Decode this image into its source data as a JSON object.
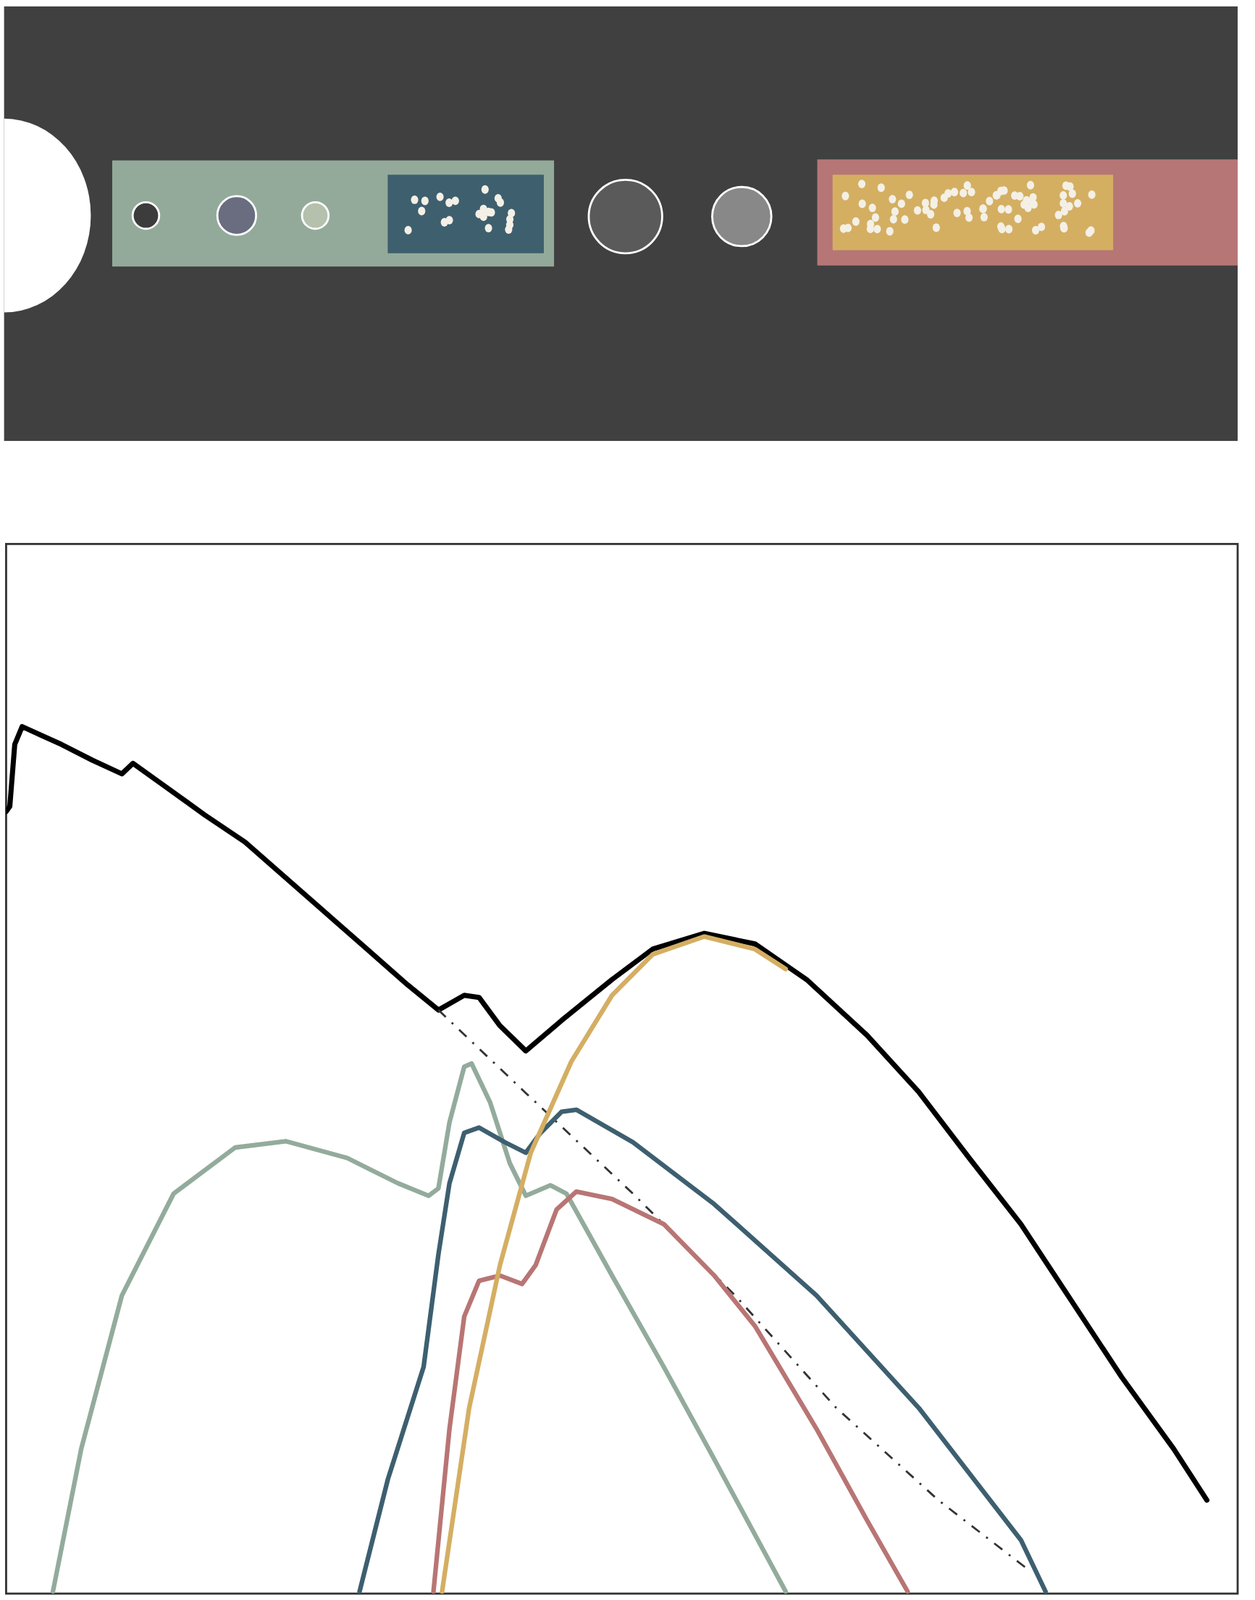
{
  "chart_data": {
    "type": "line",
    "xlim": [
      0,
      100
    ],
    "ylim": [
      0,
      100
    ],
    "tick_labels": false,
    "grid": false,
    "series": [
      {
        "color": "#000000",
        "line_style": "solid",
        "x": [
          0,
          0.3,
          0.7,
          1.3,
          2.8,
          4.5,
          7.0,
          9.4,
          10.3,
          12.8,
          16.1,
          19.4,
          22.7,
          26.0,
          29.3,
          32.6,
          35.1,
          37.2,
          38.4,
          40.1,
          42.2,
          45.1,
          49.2,
          52.5,
          56.7,
          60.8,
          65.0,
          69.9,
          74.1,
          78.2,
          82.4,
          86.5,
          90.6,
          94.8,
          97.5
        ],
        "values": [
          74.5,
          75.0,
          80.9,
          82.6,
          81.8,
          80.9,
          79.4,
          78.1,
          79.1,
          77.0,
          74.2,
          71.6,
          68.2,
          64.8,
          61.4,
          58.0,
          55.6,
          57.0,
          56.8,
          54.1,
          51.7,
          54.6,
          58.5,
          61.4,
          62.9,
          61.9,
          58.5,
          53.2,
          47.8,
          41.5,
          35.2,
          27.9,
          20.6,
          13.8,
          8.9
        ]
      },
      {
        "color": "#333333",
        "line_style": "dashdot",
        "x": [
          35.1,
          42.1,
          50.9,
          59.2,
          67.4,
          75.7,
          83.2
        ],
        "values": [
          55.6,
          47.8,
          38.1,
          28.4,
          17.7,
          8.9,
          2.1
        ]
      },
      {
        "color": "#93ab9c",
        "line_style": "solid",
        "x": [
          3.8,
          6.1,
          9.4,
          13.6,
          18.6,
          22.7,
          27.7,
          31.8,
          34.3,
          35.1,
          36.0,
          37.2,
          37.8,
          39.3,
          40.9,
          42.2,
          44.2,
          45.5,
          49.2,
          53.4,
          57.5,
          63.3
        ],
        "values": [
          0.2,
          13.8,
          28.4,
          38.1,
          42.5,
          43.1,
          41.5,
          39.1,
          37.9,
          38.6,
          44.9,
          50.2,
          50.5,
          46.8,
          41.0,
          37.9,
          38.9,
          38.1,
          30.3,
          21.6,
          12.8,
          0.2
        ]
      },
      {
        "color": "#3d5f6f",
        "line_style": "solid",
        "x": [
          28.7,
          31.0,
          33.9,
          35.1,
          36.0,
          37.2,
          38.4,
          40.5,
          42.2,
          43.4,
          45.1,
          46.3,
          50.9,
          57.5,
          65.8,
          74.1,
          82.4,
          84.4
        ],
        "values": [
          0.2,
          10.9,
          21.6,
          32.3,
          39.1,
          43.9,
          44.4,
          43.0,
          42.0,
          43.9,
          45.9,
          46.1,
          43.0,
          37.1,
          28.4,
          17.7,
          5.1,
          0.2
        ]
      },
      {
        "color": "#b87574",
        "line_style": "solid",
        "x": [
          34.7,
          36.0,
          37.2,
          38.4,
          40.1,
          41.9,
          43.0,
          44.7,
          46.3,
          49.2,
          53.4,
          57.5,
          60.8,
          65.8,
          69.9,
          73.2
        ],
        "values": [
          0.2,
          15.7,
          26.4,
          29.8,
          30.3,
          29.5,
          31.3,
          36.6,
          38.3,
          37.6,
          35.2,
          30.3,
          25.5,
          15.7,
          7.0,
          0.2
        ]
      },
      {
        "color": "#d4ae62",
        "line_style": "solid",
        "x": [
          35.4,
          37.6,
          40.1,
          42.6,
          45.9,
          49.2,
          52.5,
          56.7,
          60.8,
          63.3
        ],
        "values": [
          0.2,
          17.7,
          31.3,
          42.0,
          50.7,
          57.0,
          60.9,
          62.6,
          61.4,
          59.5
        ]
      }
    ]
  }
}
